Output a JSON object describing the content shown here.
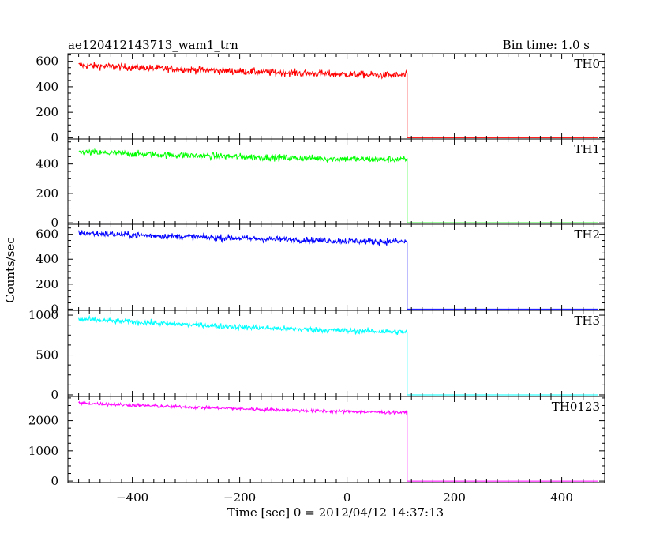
{
  "header": {
    "title": "ae120412143713_wam1_trn",
    "bin_time": "Bin time: 1.0 s"
  },
  "chart_data": {
    "type": "line",
    "xlabel": "Time [sec] 0 = 2012/04/12 14:37:13",
    "ylabel": "Counts/sec",
    "xlim": [
      -520,
      480
    ],
    "xticks": [
      -400,
      -200,
      0,
      200,
      400
    ],
    "xtick_labels": [
      "−400",
      "−200",
      "0",
      "200",
      "400"
    ],
    "bin_seconds": 1.0,
    "panels": [
      {
        "label": "TH0",
        "color": "#ff0000",
        "ylim": [
          -10,
          660
        ],
        "yticks": [
          0,
          200,
          400,
          600
        ],
        "ytick_labels": [
          "0",
          "200",
          "400",
          "600"
        ],
        "start_level": 570,
        "pre_drop_level": 490,
        "noise": 28,
        "post_drop_level": 0
      },
      {
        "label": "TH1",
        "color": "#00ff00",
        "ylim": [
          -10,
          570
        ],
        "yticks": [
          0,
          200,
          400
        ],
        "ytick_labels": [
          "0",
          "200",
          "400"
        ],
        "start_level": 480,
        "pre_drop_level": 430,
        "noise": 22,
        "post_drop_level": 0
      },
      {
        "label": "TH2",
        "color": "#0000ff",
        "ylim": [
          -10,
          680
        ],
        "yticks": [
          0,
          200,
          400,
          600
        ],
        "ytick_labels": [
          "0",
          "200",
          "400",
          "600"
        ],
        "start_level": 610,
        "pre_drop_level": 540,
        "noise": 25,
        "post_drop_level": 0
      },
      {
        "label": "TH3",
        "color": "#00ffff",
        "ylim": [
          -20,
          1060
        ],
        "yticks": [
          0,
          500,
          1000
        ],
        "ytick_labels": [
          "0",
          "500",
          "1000"
        ],
        "start_level": 950,
        "pre_drop_level": 790,
        "noise": 35,
        "post_drop_level": 0
      },
      {
        "label": "TH0123",
        "color": "#ff00ff",
        "ylim": [
          -50,
          2800
        ],
        "yticks": [
          0,
          1000,
          2000
        ],
        "ytick_labels": [
          "0",
          "1000",
          "2000"
        ],
        "start_level": 2580,
        "pre_drop_level": 2270,
        "noise": 55,
        "post_drop_level": 0
      }
    ],
    "series_start": -500,
    "drop_time": 112,
    "series_end": 468
  }
}
